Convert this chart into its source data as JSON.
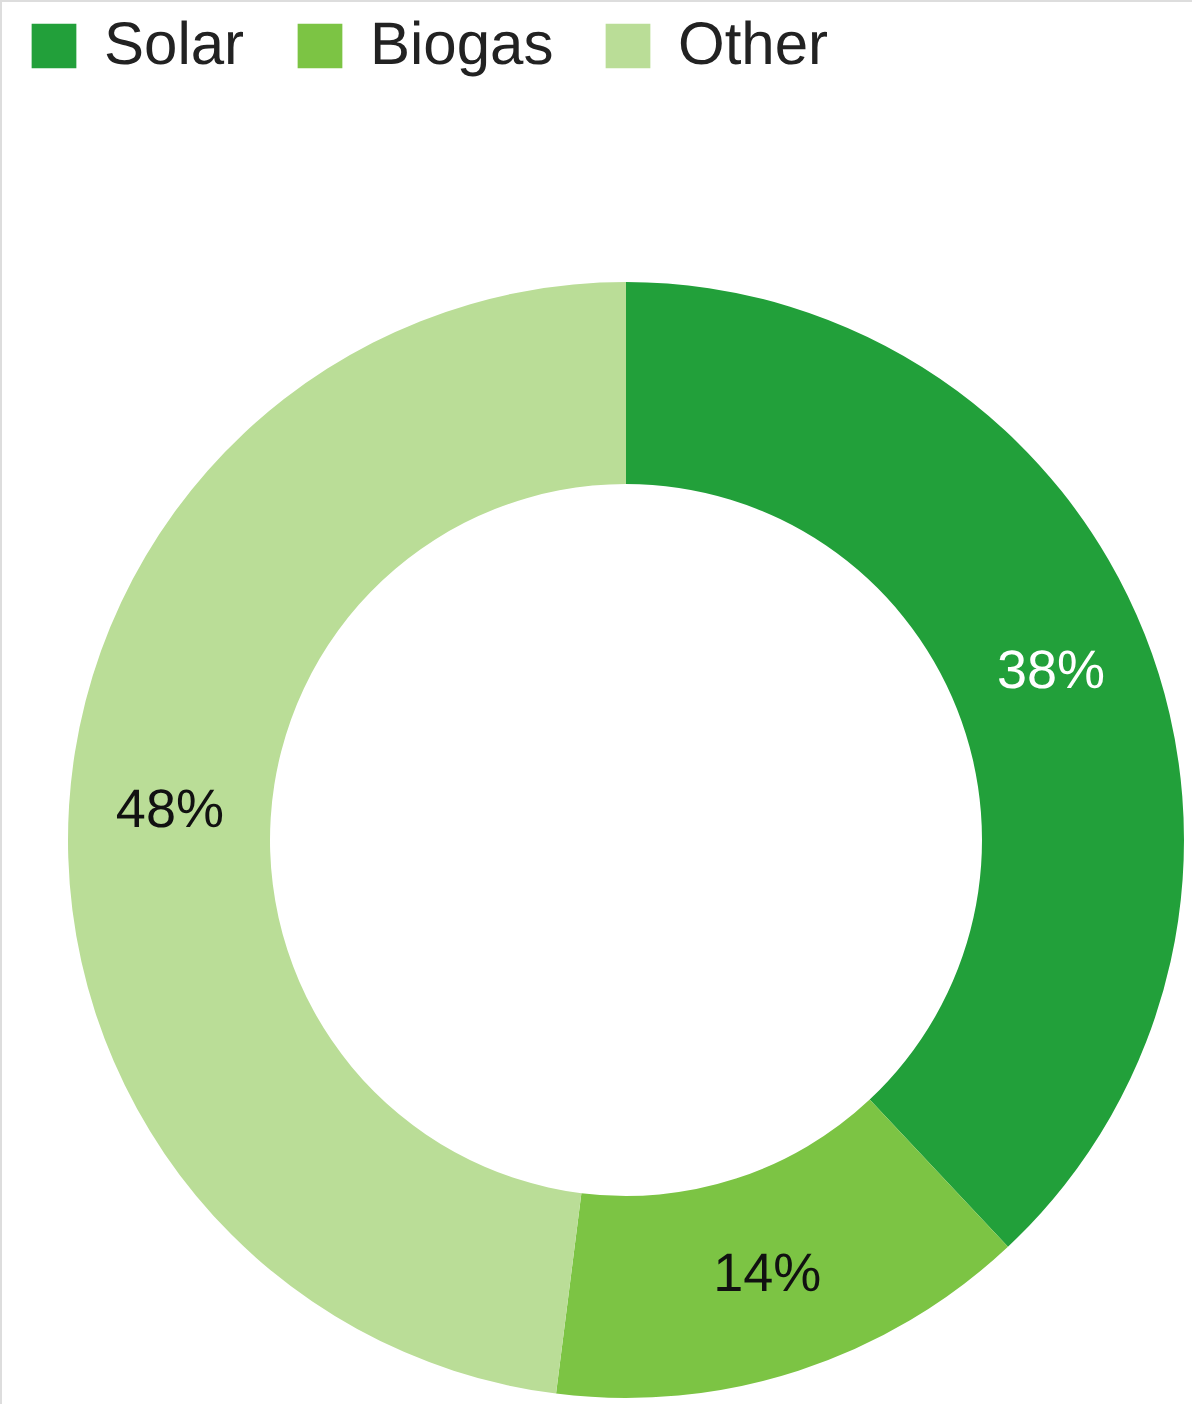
{
  "chart_data": {
    "type": "donut",
    "categories": [
      "Solar",
      "Biogas",
      "Other"
    ],
    "values": [
      38,
      14,
      48
    ],
    "colors": [
      "#22a03a",
      "#7cc444",
      "#badd97"
    ],
    "value_labels": [
      "38%",
      "14%",
      "48%"
    ],
    "legend": "top left"
  }
}
